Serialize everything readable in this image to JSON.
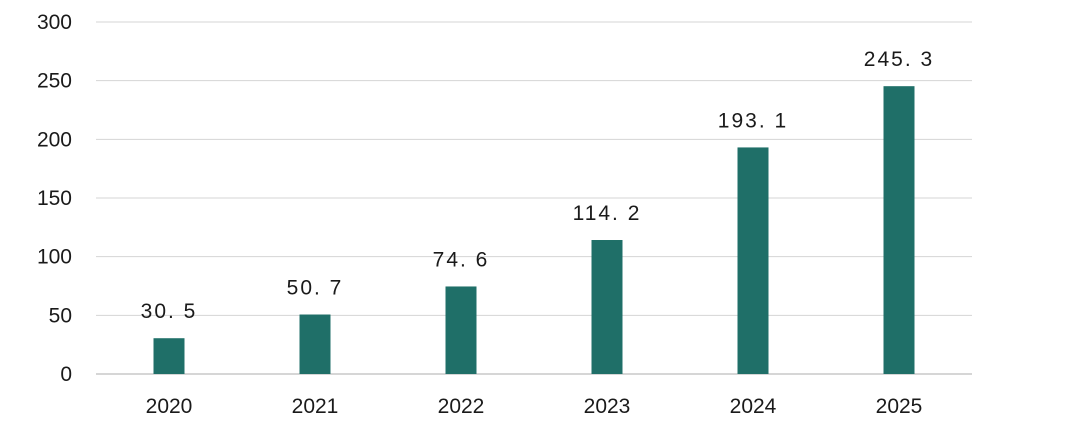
{
  "chart_data": {
    "type": "bar",
    "title": "",
    "xlabel": "",
    "ylabel": "",
    "categories": [
      "2020",
      "2021",
      "2022",
      "2023",
      "2024",
      "2025"
    ],
    "values": [
      30.5,
      50.7,
      74.6,
      114.2,
      193.1,
      245.3
    ],
    "data_labels": [
      "30. 5",
      "50. 7",
      "74. 6",
      "114. 2",
      "193. 1",
      "245. 3"
    ],
    "ylim": [
      0,
      300
    ],
    "yticks": [
      0,
      50,
      100,
      150,
      200,
      250,
      300
    ],
    "ytick_labels": [
      "0",
      "50",
      "100",
      "150",
      "200",
      "250",
      "300"
    ],
    "grid": true,
    "legend": "none",
    "colors": {
      "bar": "#1f6f68",
      "grid": "#d4d4d4",
      "text": "#1a1a1a"
    }
  }
}
